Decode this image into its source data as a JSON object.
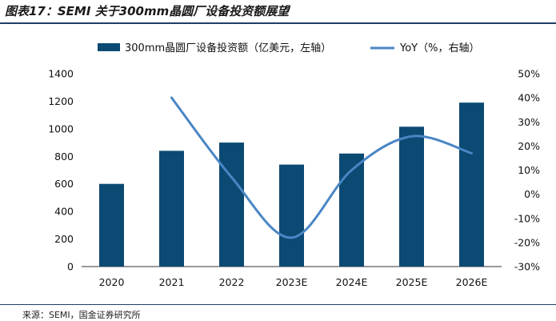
{
  "title": "图表17：SEMI 关于300mm晶圆厂设备投资额展望",
  "source": "来源：SEMI，国金证券研究所",
  "chart_data": {
    "type": "bar",
    "categories": [
      "2020",
      "2021",
      "2022",
      "2023E",
      "2024E",
      "2025E",
      "2026E"
    ],
    "series": [
      {
        "name": "300mm晶圆厂设备投资额（亿美元，左轴）",
        "type": "bar",
        "axis": "left",
        "color": "#0b4a73",
        "values": [
          600,
          840,
          900,
          740,
          820,
          1015,
          1190
        ]
      },
      {
        "name": "YoY（%，右轴）",
        "type": "line",
        "axis": "right",
        "color": "#4a86c5",
        "values": [
          null,
          40,
          7,
          -18,
          10,
          24,
          17
        ]
      }
    ],
    "y_left": {
      "min": 0,
      "max": 1400,
      "ticks": [
        "0",
        "200",
        "400",
        "600",
        "800",
        "1000",
        "1200",
        "1400"
      ]
    },
    "y_right": {
      "min": -30,
      "max": 50,
      "ticks": [
        "-30%",
        "-20%",
        "-10%",
        "0%",
        "10%",
        "20%",
        "30%",
        "40%",
        "50%"
      ]
    },
    "legend_position": "top",
    "grid": false
  }
}
